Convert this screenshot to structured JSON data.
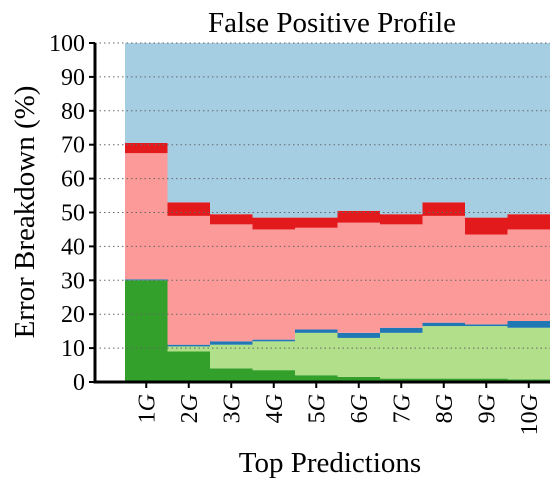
{
  "chart_data": {
    "type": "stacked-step",
    "title": "False Positive Profile",
    "x_label": "Top Predictions",
    "y_label": "Error Breakdown (%)",
    "categories": [
      "1G",
      "2G",
      "3G",
      "4G",
      "5G",
      "6G",
      "7G",
      "8G",
      "9G",
      "10G"
    ],
    "series": [
      {
        "color": "#33a02c",
        "values": [
          30,
          9,
          4,
          3.5,
          2,
          1.5,
          1,
          1,
          1,
          0.8
        ]
      },
      {
        "color": "#b2df8a",
        "values": [
          0,
          1.5,
          7,
          8.5,
          12.5,
          11.5,
          13.5,
          15.5,
          15.5,
          15.2
        ]
      },
      {
        "color": "#1f78b4",
        "values": [
          0.3,
          0.5,
          1,
          0.5,
          1,
          1.5,
          1.5,
          1,
          0.5,
          2
        ]
      },
      {
        "color": "#fb9a99",
        "values": [
          37.2,
          38,
          34.5,
          32.5,
          30,
          32.5,
          30.5,
          31.5,
          26.5,
          27
        ]
      },
      {
        "color": "#e31a1c",
        "values": [
          3,
          4,
          3,
          3.5,
          3,
          3.5,
          3,
          4,
          5,
          4.5
        ]
      },
      {
        "color": "#a6cee3",
        "values": [
          29.5,
          47,
          50.5,
          51.5,
          51.5,
          49.5,
          50.5,
          47,
          51.5,
          50.5
        ]
      }
    ],
    "ylim": [
      0,
      100
    ],
    "yticks": [
      0,
      10,
      20,
      30,
      40,
      50,
      60,
      70,
      80,
      90,
      100
    ],
    "grid": true
  }
}
